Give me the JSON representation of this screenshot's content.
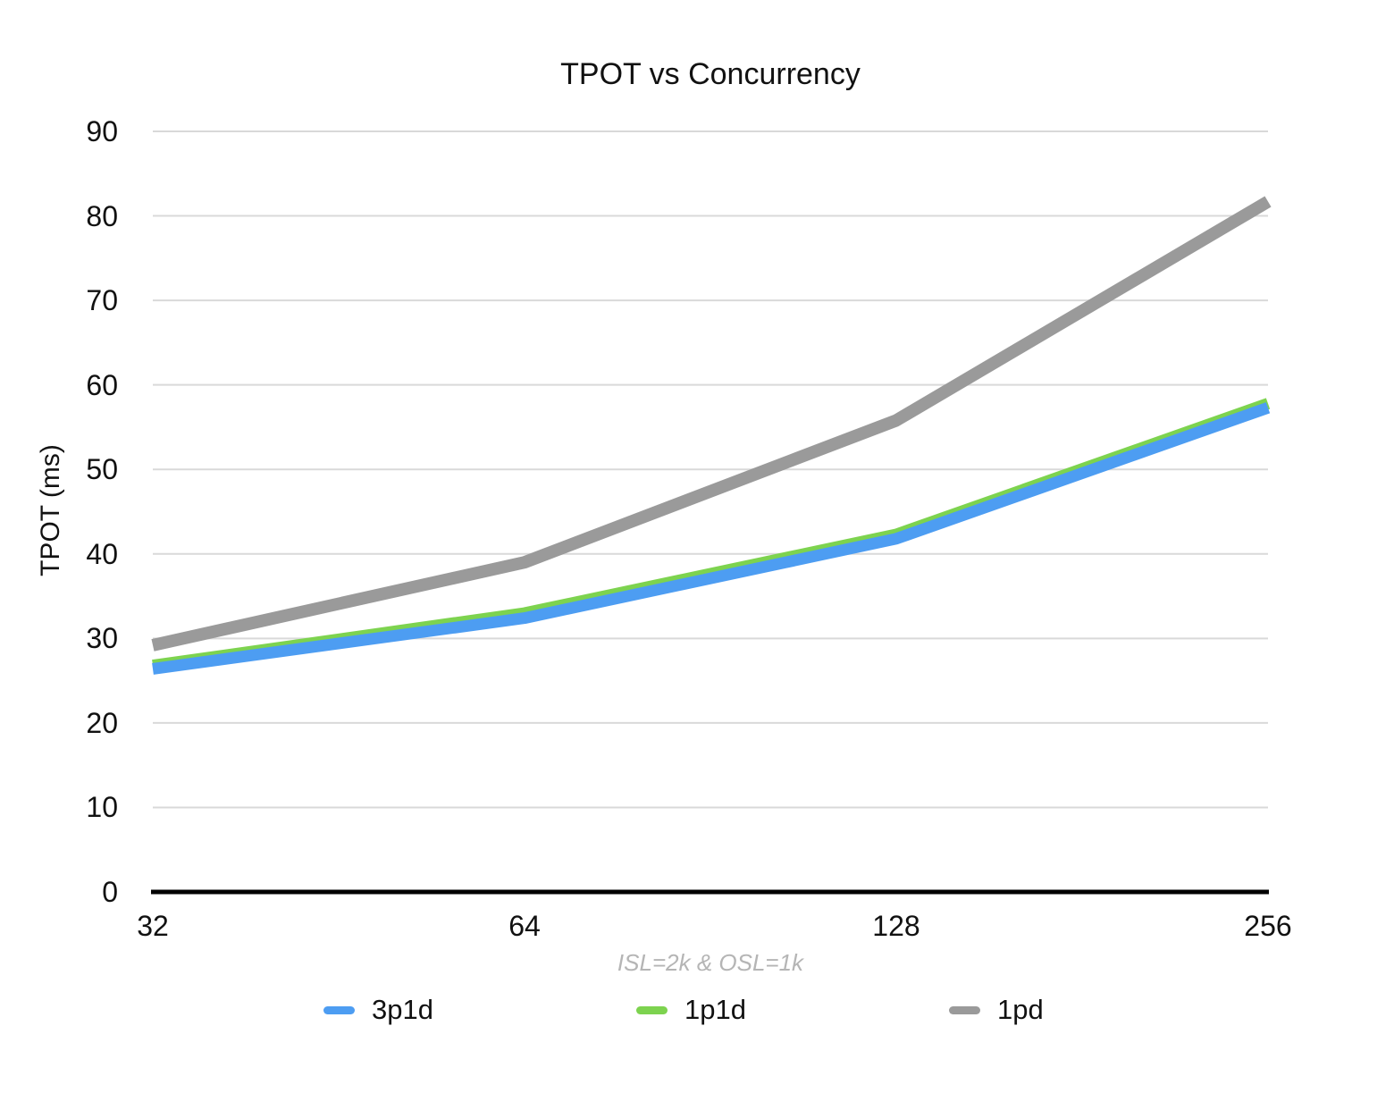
{
  "chart_data": {
    "type": "line",
    "title": "TPOT vs Concurrency",
    "ylabel": "TPOT (ms)",
    "xlabel_note": "ISL=2k & OSL=1k",
    "categories": [
      "32",
      "64",
      "128",
      "256"
    ],
    "series": [
      {
        "name": "3p1d",
        "color": "#4d9df2",
        "values": [
          26.4,
          32.4,
          41.8,
          57.3
        ]
      },
      {
        "name": "1p1d",
        "color": "#7dd34f",
        "values": [
          26.8,
          33.0,
          42.3,
          57.8
        ]
      },
      {
        "name": "1pd",
        "color": "#9a9a9a",
        "values": [
          29.2,
          39.0,
          55.8,
          81.7
        ]
      }
    ],
    "ylim": [
      0,
      90
    ],
    "yticks": [
      "0",
      "10",
      "20",
      "30",
      "40",
      "50",
      "60",
      "70",
      "80",
      "90"
    ],
    "grid": "horizontal-only",
    "legend_position": "bottom",
    "colors": {
      "gridline": "#d9d9d9",
      "axis_line": "#000000",
      "note_text": "#b5b5b5",
      "title_text": "#111111"
    }
  }
}
